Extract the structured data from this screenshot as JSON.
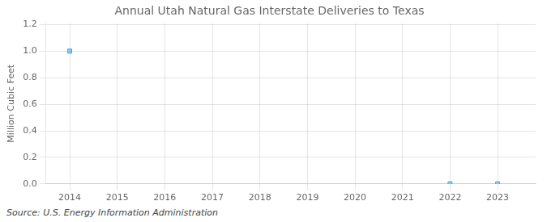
{
  "chart_data": {
    "type": "scatter",
    "title": "Annual Utah Natural Gas Interstate Deliveries to Texas",
    "ylabel": "Million Cubic Feet",
    "source": "Source: U.S. Energy Information Administration",
    "x": [
      2014,
      2022,
      2023
    ],
    "values": [
      1.0,
      0.001,
      0.001
    ],
    "marker": "square",
    "xlim": [
      2013.5,
      2023.8
    ],
    "xticks": [
      2014,
      2015,
      2016,
      2017,
      2018,
      2019,
      2020,
      2021,
      2022,
      2023
    ],
    "ylim": [
      0.0,
      1.21
    ],
    "yticks": [
      {
        "value": 0.0,
        "label": "0.0"
      },
      0.2,
      0.4,
      0.6,
      0.8,
      {
        "value": 1.0,
        "label": "1.0"
      },
      1.2
    ],
    "grid": true
  }
}
